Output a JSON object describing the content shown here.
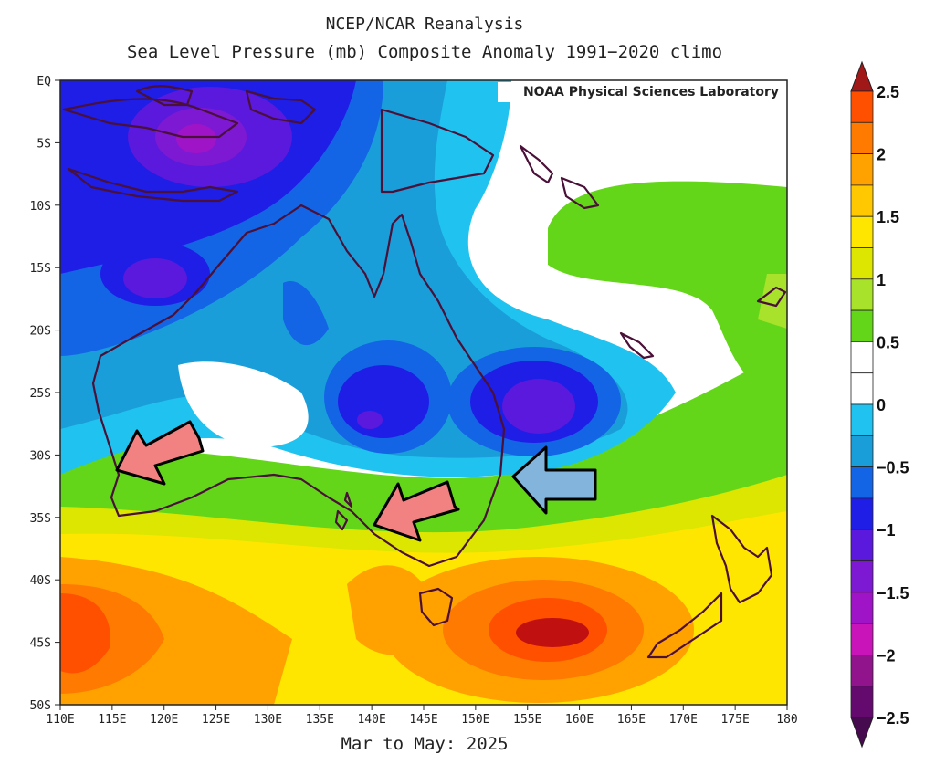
{
  "title_line1": "NCEP/NCAR Reanalysis",
  "title_line2": "Sea Level Pressure (mb) Composite Anomaly 1991−2020 climo",
  "credit": "NOAA Physical Sciences Laboratory",
  "time_period": "Mar to May: 2025",
  "map": {
    "lon_range": [
      110,
      180
    ],
    "lat_range": [
      0,
      -50
    ],
    "lon_labels": [
      "110E",
      "115E",
      "120E",
      "125E",
      "130E",
      "135E",
      "140E",
      "145E",
      "150E",
      "155E",
      "160E",
      "165E",
      "170E",
      "175E",
      "180"
    ],
    "lat_labels": [
      "EQ",
      "5S",
      "10S",
      "15S",
      "20S",
      "25S",
      "30S",
      "35S",
      "40S",
      "45S",
      "50S"
    ],
    "anomaly_centers": [
      {
        "name": "low-new-guinea",
        "lon": 123,
        "lat": -5,
        "value": -2.0
      },
      {
        "name": "low-nw-australia",
        "lon": 120,
        "lat": -16,
        "value": -1.5
      },
      {
        "name": "low-central-australia",
        "lon": 141,
        "lat": -27,
        "value": -1.5
      },
      {
        "name": "low-coral-sea",
        "lon": 156,
        "lat": -26,
        "value": -1.5
      },
      {
        "name": "high-tasman-sea",
        "lon": 157,
        "lat": -44,
        "value": 2.5
      },
      {
        "name": "high-southern-indian",
        "lon": 113,
        "lat": -43,
        "value": 2.0
      }
    ],
    "arrows": [
      {
        "name": "arrow-southwest-wa",
        "color": "#f08080"
      },
      {
        "name": "arrow-south-australia",
        "color": "#f08080"
      },
      {
        "name": "arrow-east-coast-nsw",
        "color": "#7fb2d8"
      }
    ]
  },
  "colorbar": {
    "labels": [
      "2.5",
      "2",
      "1.5",
      "1",
      "0.5",
      "0",
      "−0.5",
      "−1",
      "−1.5",
      "−2",
      "−2.5"
    ],
    "colors": [
      "#ff5000",
      "#ff7a00",
      "#ffa200",
      "#ffc800",
      "#ffe600",
      "#dce600",
      "#a8e22a",
      "#64d61a",
      "#ffffff",
      "#ffffff",
      "#20c3ef",
      "#1a9eda",
      "#1464e6",
      "#1e1ee6",
      "#5a19dc",
      "#7d19d2",
      "#a014c8",
      "#c814b9",
      "#91148c",
      "#640a6e"
    ]
  }
}
